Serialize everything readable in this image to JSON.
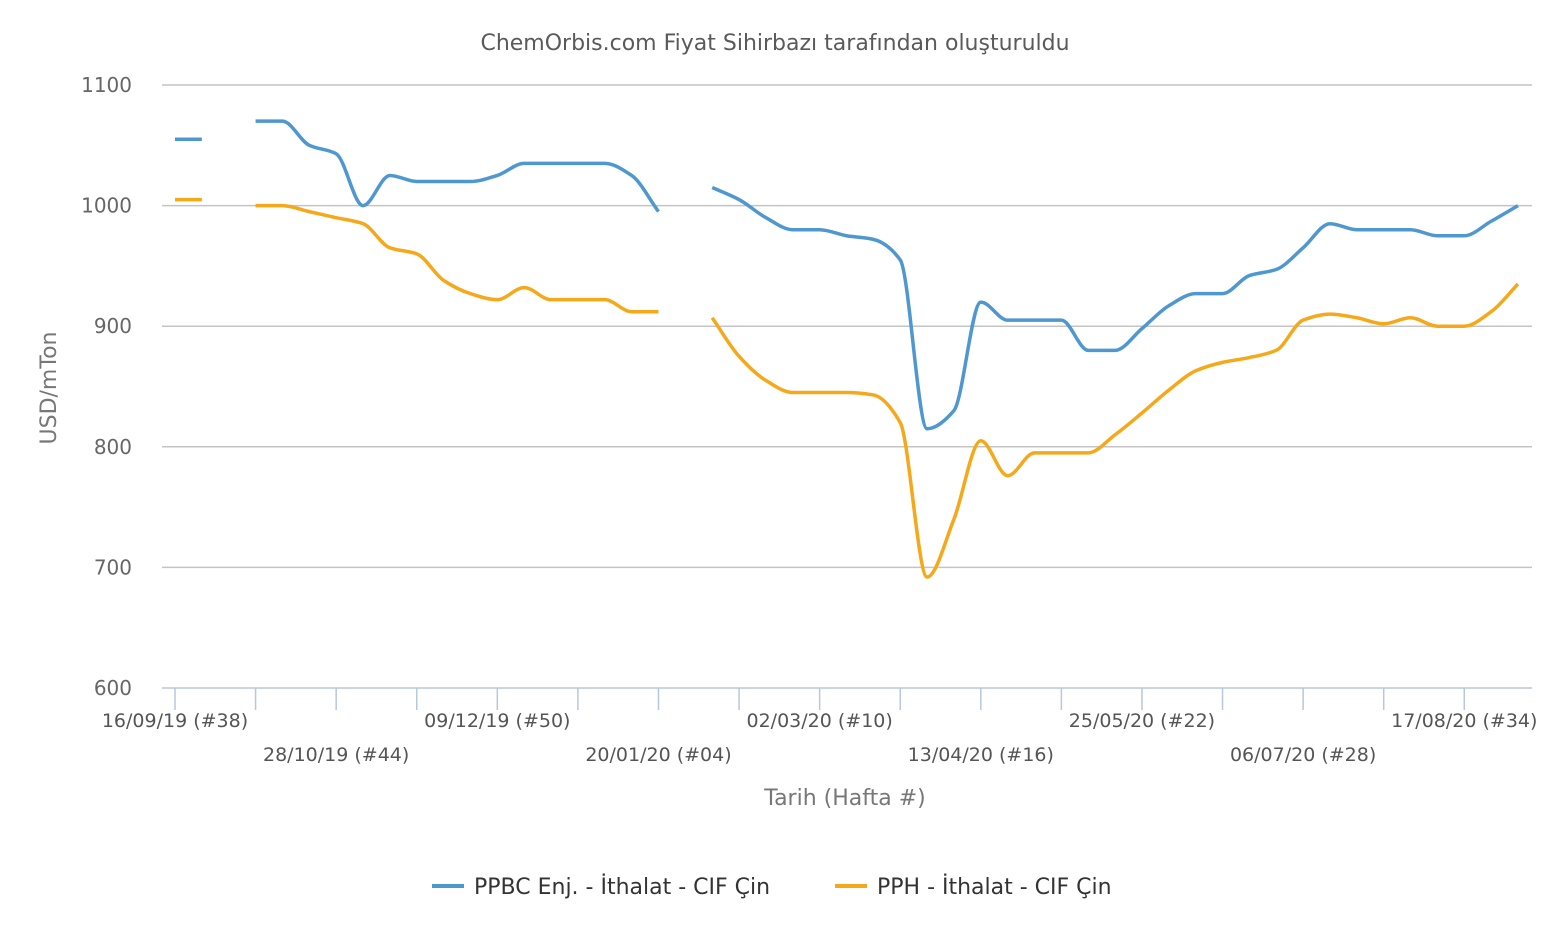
{
  "chart_data": {
    "type": "line",
    "title": "ChemOrbis.com Fiyat Sihirbazı tarafından oluşturuldu",
    "xlabel": "Tarih (Hafta #)",
    "ylabel": "USD/mTon",
    "ylim": [
      600,
      1100
    ],
    "yticks": [
      "600",
      "700",
      "800",
      "900",
      "1000",
      "1100"
    ],
    "xlim": [
      "2019-09-16",
      "2020-08-31"
    ],
    "xtick_labels": [
      {
        "date": "2019-09-16",
        "label": "16/09/19 (#38)"
      },
      {
        "date": "2019-10-28",
        "label": "28/10/19 (#44)"
      },
      {
        "date": "2019-12-09",
        "label": "09/12/19 (#50)"
      },
      {
        "date": "2020-01-20",
        "label": "20/01/20 (#04)"
      },
      {
        "date": "2020-03-02",
        "label": "02/03/20 (#10)"
      },
      {
        "date": "2020-04-13",
        "label": "13/04/20 (#16)"
      },
      {
        "date": "2020-05-25",
        "label": "25/05/20 (#22)"
      },
      {
        "date": "2020-07-06",
        "label": "06/07/20 (#28)"
      },
      {
        "date": "2020-08-17",
        "label": "17/08/20 (#34)"
      }
    ],
    "minor_tick_dates": [
      "2019-10-07",
      "2019-11-18",
      "2019-12-30",
      "2020-02-10",
      "2020-03-23",
      "2020-05-04",
      "2020-06-15",
      "2020-07-27"
    ],
    "grid": true,
    "legend_position": "bottom",
    "series": [
      {
        "name": "PPBC Enj. - İthalat - CIF Çin",
        "color": "#4f98cf",
        "segments": [
          [
            [
              "2019-09-16",
              1055
            ],
            [
              "2019-09-23",
              1055
            ]
          ],
          [
            [
              "2019-10-07",
              1070
            ],
            [
              "2019-10-14",
              1070
            ],
            [
              "2019-10-21",
              1050
            ],
            [
              "2019-10-28",
              1043
            ],
            [
              "2019-11-04",
              1000
            ],
            [
              "2019-11-11",
              1025
            ],
            [
              "2019-11-18",
              1020
            ],
            [
              "2019-11-25",
              1020
            ],
            [
              "2019-12-02",
              1020
            ],
            [
              "2019-12-09",
              1025
            ],
            [
              "2019-12-16",
              1035
            ],
            [
              "2019-12-23",
              1035
            ],
            [
              "2019-12-30",
              1035
            ],
            [
              "2020-01-06",
              1035
            ],
            [
              "2020-01-13",
              1025
            ],
            [
              "2020-01-20",
              995
            ]
          ],
          [
            [
              "2020-02-03",
              1015
            ],
            [
              "2020-02-10",
              1005
            ],
            [
              "2020-02-17",
              990
            ],
            [
              "2020-02-24",
              980
            ],
            [
              "2020-03-02",
              980
            ],
            [
              "2020-03-09",
              975
            ],
            [
              "2020-03-16",
              972
            ],
            [
              "2020-03-23",
              955
            ],
            [
              "2020-03-30",
              815
            ],
            [
              "2020-04-06",
              830
            ],
            [
              "2020-04-13",
              920
            ],
            [
              "2020-04-20",
              905
            ],
            [
              "2020-04-27",
              905
            ],
            [
              "2020-05-04",
              905
            ],
            [
              "2020-05-11",
              880
            ],
            [
              "2020-05-18",
              880
            ],
            [
              "2020-05-25",
              898
            ],
            [
              "2020-06-01",
              917
            ],
            [
              "2020-06-08",
              927
            ],
            [
              "2020-06-15",
              927
            ],
            [
              "2020-06-22",
              942
            ],
            [
              "2020-06-29",
              947
            ],
            [
              "2020-07-06",
              965
            ],
            [
              "2020-07-13",
              985
            ],
            [
              "2020-07-20",
              980
            ],
            [
              "2020-07-27",
              980
            ],
            [
              "2020-08-03",
              980
            ],
            [
              "2020-08-10",
              975
            ],
            [
              "2020-08-17",
              975
            ],
            [
              "2020-08-24",
              987
            ],
            [
              "2020-08-31",
              1000
            ]
          ]
        ]
      },
      {
        "name": "PPH - İthalat - CIF Çin",
        "color": "#f6a81b",
        "segments": [
          [
            [
              "2019-09-16",
              1005
            ],
            [
              "2019-09-23",
              1005
            ]
          ],
          [
            [
              "2019-10-07",
              1000
            ],
            [
              "2019-10-14",
              1000
            ],
            [
              "2019-10-21",
              995
            ],
            [
              "2019-10-28",
              990
            ],
            [
              "2019-11-04",
              985
            ],
            [
              "2019-11-11",
              965
            ],
            [
              "2019-11-18",
              960
            ],
            [
              "2019-11-25",
              938
            ],
            [
              "2019-12-02",
              927
            ],
            [
              "2019-12-09",
              922
            ],
            [
              "2019-12-16",
              932
            ],
            [
              "2019-12-23",
              922
            ],
            [
              "2019-12-30",
              922
            ],
            [
              "2020-01-06",
              922
            ],
            [
              "2020-01-13",
              912
            ],
            [
              "2020-01-20",
              912
            ]
          ],
          [
            [
              "2020-02-03",
              907
            ],
            [
              "2020-02-10",
              875
            ],
            [
              "2020-02-17",
              855
            ],
            [
              "2020-02-24",
              845
            ],
            [
              "2020-03-02",
              845
            ],
            [
              "2020-03-09",
              845
            ],
            [
              "2020-03-16",
              843
            ],
            [
              "2020-03-23",
              820
            ],
            [
              "2020-03-30",
              692
            ],
            [
              "2020-04-06",
              740
            ],
            [
              "2020-04-13",
              805
            ],
            [
              "2020-04-20",
              776
            ],
            [
              "2020-04-27",
              795
            ],
            [
              "2020-05-04",
              795
            ],
            [
              "2020-05-11",
              795
            ],
            [
              "2020-05-18",
              810
            ],
            [
              "2020-05-25",
              828
            ],
            [
              "2020-06-01",
              847
            ],
            [
              "2020-06-08",
              863
            ],
            [
              "2020-06-15",
              870
            ],
            [
              "2020-06-22",
              874
            ],
            [
              "2020-06-29",
              880
            ],
            [
              "2020-07-06",
              905
            ],
            [
              "2020-07-13",
              910
            ],
            [
              "2020-07-20",
              907
            ],
            [
              "2020-07-27",
              902
            ],
            [
              "2020-08-03",
              907
            ],
            [
              "2020-08-10",
              900
            ],
            [
              "2020-08-17",
              900
            ],
            [
              "2020-08-24",
              912
            ],
            [
              "2020-08-31",
              935
            ]
          ]
        ]
      }
    ]
  }
}
